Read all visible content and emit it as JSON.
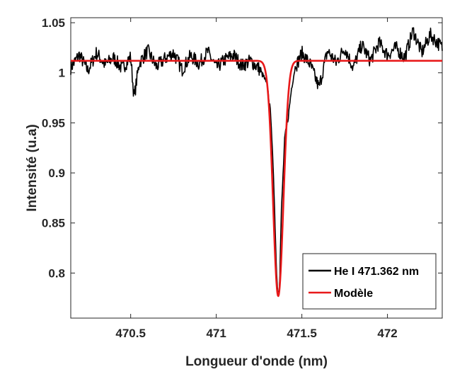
{
  "chart_data": {
    "type": "line",
    "title": "",
    "xlabel": "Longueur d'onde (nm)",
    "ylabel": "Intensité (u.a)",
    "xlim": [
      470.15,
      472.32
    ],
    "ylim": [
      0.755,
      1.055
    ],
    "xticks": [
      470.5,
      471,
      471.5,
      472
    ],
    "xtick_labels": [
      "470.5",
      "471",
      "471.5",
      "472"
    ],
    "yticks": [
      0.8,
      0.85,
      0.9,
      0.95,
      1,
      1.05
    ],
    "ytick_labels": [
      "0.8",
      "0.85",
      "0.9",
      "0.95",
      "1",
      "1.05"
    ],
    "grid": false,
    "legend_position": "bottom-right",
    "series": [
      {
        "name": "He I 471.362 nm",
        "color": "#000000",
        "x": [
          470.15,
          470.2,
          470.25,
          470.3,
          470.35,
          470.4,
          470.45,
          470.5,
          470.52,
          470.55,
          470.6,
          470.65,
          470.7,
          470.75,
          470.8,
          470.85,
          470.9,
          470.95,
          471.0,
          471.05,
          471.1,
          471.15,
          471.2,
          471.25,
          471.28,
          471.3,
          471.32,
          471.34,
          471.35,
          471.36,
          471.37,
          471.38,
          471.4,
          471.42,
          471.44,
          471.46,
          471.48,
          471.5,
          471.55,
          471.6,
          471.65,
          471.7,
          471.75,
          471.8,
          471.85,
          471.9,
          471.95,
          472.0,
          472.05,
          472.1,
          472.15,
          472.2,
          472.25,
          472.32
        ],
        "y": [
          1.005,
          1.018,
          1.002,
          1.02,
          1.008,
          1.015,
          1.004,
          1.016,
          0.975,
          1.01,
          1.022,
          1.006,
          1.014,
          1.02,
          1.003,
          1.017,
          1.009,
          1.021,
          1.005,
          1.013,
          1.018,
          1.007,
          1.012,
          1.004,
          0.995,
          0.985,
          0.955,
          0.87,
          0.81,
          0.778,
          0.79,
          0.86,
          0.935,
          0.955,
          0.985,
          1.005,
          1.012,
          1.02,
          1.008,
          0.985,
          1.022,
          1.01,
          1.025,
          1.005,
          1.028,
          1.012,
          1.03,
          1.018,
          1.025,
          1.015,
          1.042,
          1.02,
          1.038,
          1.025
        ]
      },
      {
        "name": "Modèle",
        "color": "#e8191a",
        "model": {
          "kind": "gaussian-absorption",
          "baseline": 1.012,
          "center": 471.362,
          "depth": 0.235,
          "width": 0.03
        }
      }
    ]
  }
}
